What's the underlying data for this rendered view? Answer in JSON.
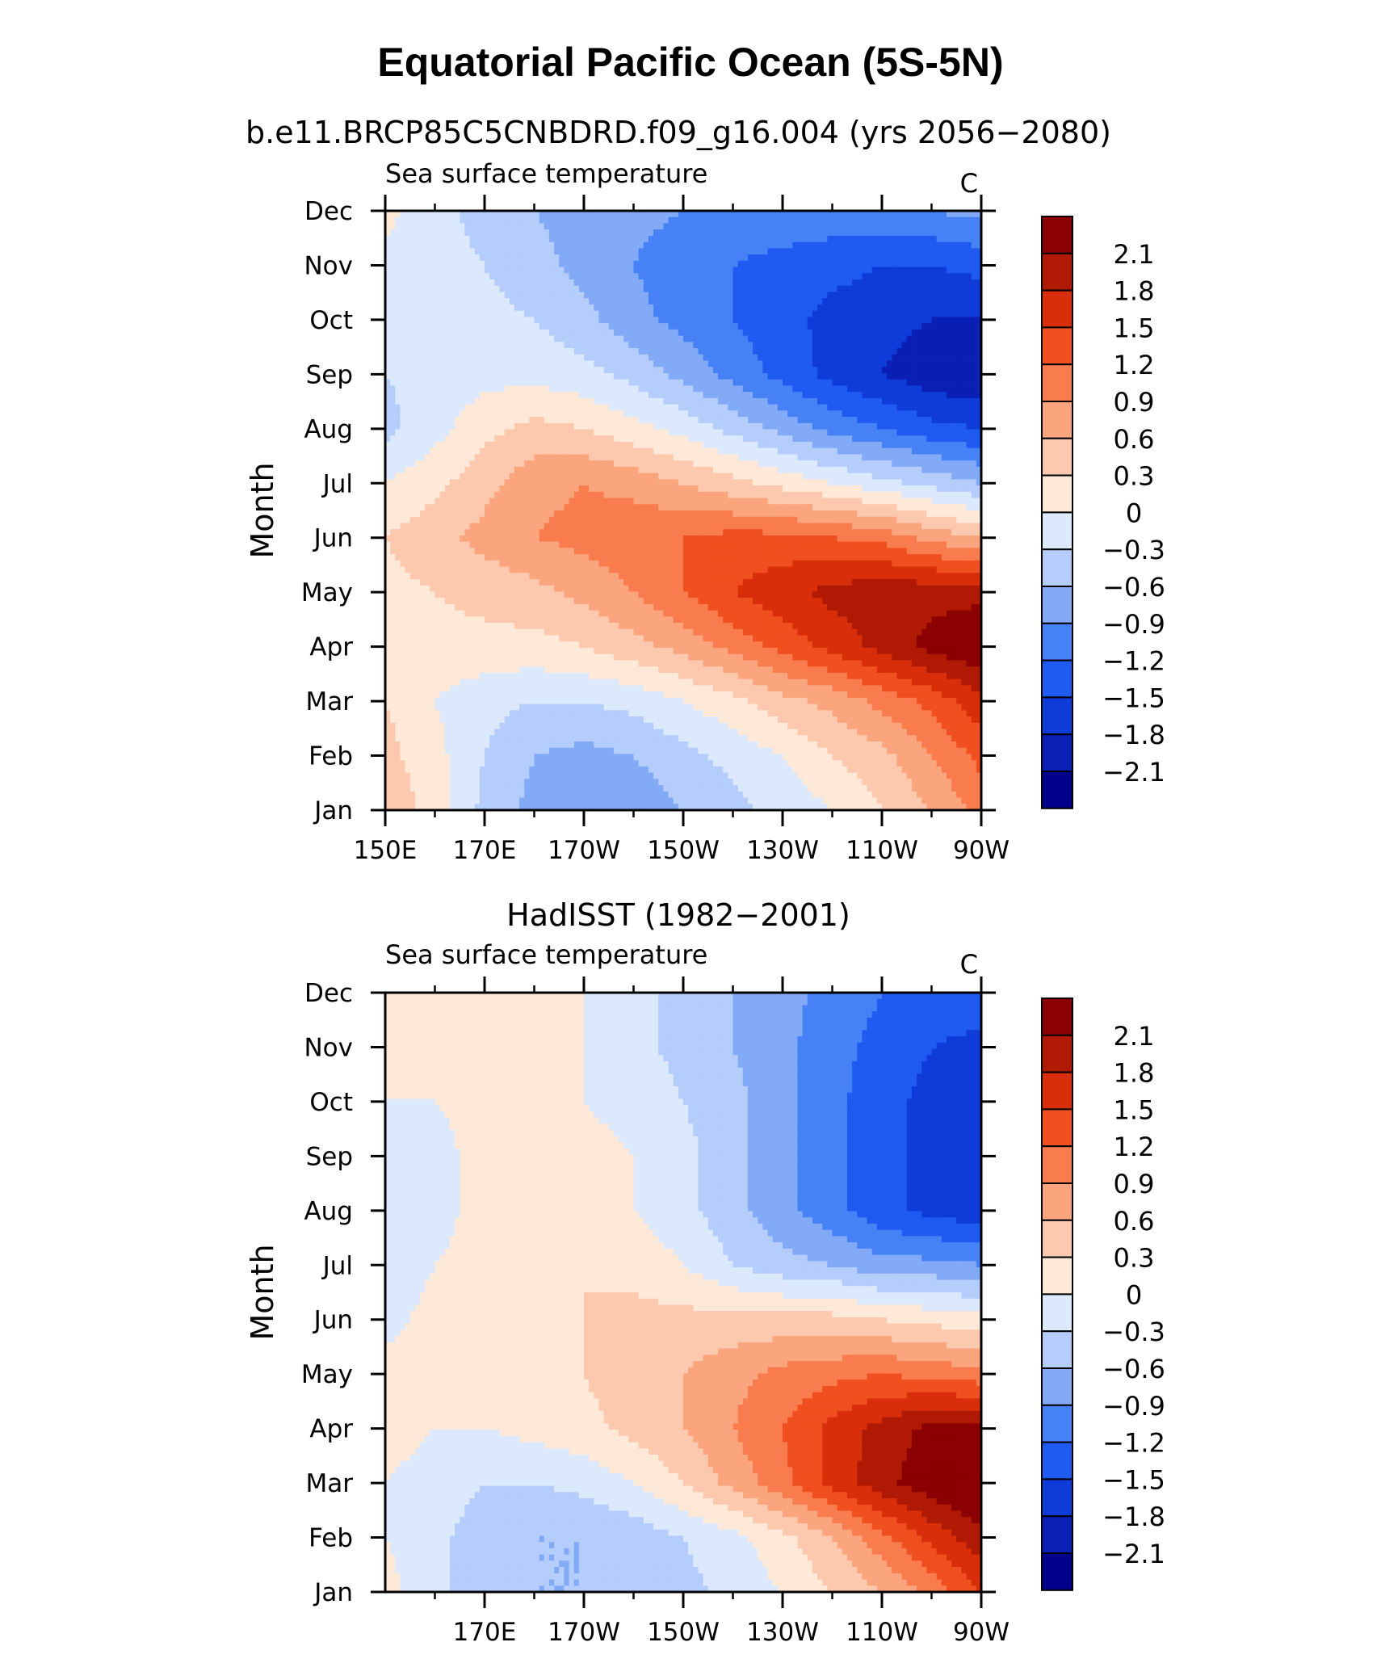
{
  "chart_data": {
    "type": "heatmap",
    "title": "Equatorial Pacific Ocean (5S-5N)",
    "plot_label": "Sea surface temperature",
    "units": "C",
    "ylabel": "Month",
    "months": [
      "Jan",
      "Feb",
      "Mar",
      "Apr",
      "May",
      "Jun",
      "Jul",
      "Aug",
      "Sep",
      "Oct",
      "Nov",
      "Dec"
    ],
    "contour_levels": [
      -2.1,
      -1.8,
      -1.5,
      -1.2,
      -0.9,
      -0.6,
      -0.3,
      0,
      0.3,
      0.6,
      0.9,
      1.2,
      1.5,
      1.8,
      2.1
    ],
    "colorbar_labels": [
      "2.1",
      "1.8",
      "1.5",
      "1.2",
      "0.9",
      "0.6",
      "0.3",
      "0",
      "−0.3",
      "−0.6",
      "−0.9",
      "−1.2",
      "−1.5",
      "−1.8",
      "−2.1"
    ],
    "colors": [
      "#00008b",
      "#0a1fb4",
      "#0f3cd8",
      "#1f5bf0",
      "#4682f5",
      "#82aaf7",
      "#b4cdfa",
      "#dce9fc",
      "#fee8d8",
      "#fcc9ae",
      "#fba57f",
      "#f97c4e",
      "#f04f1f",
      "#d82e0a",
      "#b01a05",
      "#8b0000"
    ],
    "panels": [
      {
        "subtitle": "b.e11.BRCP85C5CNBDRD.f09_g16.004 (yrs 2056−2080)",
        "lon_labels": [
          "150E",
          "170E",
          "170W",
          "150W",
          "130W",
          "110W",
          "90W"
        ],
        "lon_values": [
          150,
          170,
          190,
          210,
          230,
          250,
          270
        ],
        "lon_range": [
          150,
          270
        ],
        "grid_lon": [
          150,
          160,
          170,
          180,
          190,
          200,
          210,
          220,
          230,
          240,
          250,
          260,
          270
        ],
        "values": [
          [
            0.5,
            0.2,
            -0.4,
            -0.7,
            -0.9,
            -0.8,
            -0.6,
            -0.4,
            -0.2,
            0.0,
            0.3,
            0.6,
            1.0
          ],
          [
            0.4,
            0.1,
            -0.3,
            -0.6,
            -0.7,
            -0.6,
            -0.4,
            -0.2,
            0.0,
            0.3,
            0.5,
            0.9,
            1.3
          ],
          [
            0.3,
            0.0,
            -0.2,
            -0.3,
            -0.3,
            -0.2,
            0.0,
            0.2,
            0.5,
            0.7,
            1.0,
            1.3,
            1.7
          ],
          [
            0.2,
            0.2,
            0.2,
            0.2,
            0.3,
            0.5,
            0.7,
            1.0,
            1.3,
            1.6,
            1.9,
            2.2,
            2.4
          ],
          [
            0.2,
            0.3,
            0.4,
            0.5,
            0.7,
            0.9,
            1.2,
            1.5,
            1.7,
            1.9,
            2.0,
            2.0,
            2.0
          ],
          [
            0.3,
            0.5,
            0.7,
            0.9,
            1.0,
            1.1,
            1.2,
            1.3,
            1.3,
            1.2,
            1.1,
            0.8,
            0.6
          ],
          [
            0.0,
            0.2,
            0.5,
            0.8,
            0.9,
            0.8,
            0.6,
            0.4,
            0.2,
            0.0,
            -0.2,
            -0.4,
            -0.6
          ],
          [
            -0.4,
            -0.1,
            0.2,
            0.4,
            0.3,
            0.1,
            -0.1,
            -0.4,
            -0.7,
            -1.0,
            -1.2,
            -1.4,
            -1.5
          ],
          [
            -0.3,
            -0.2,
            -0.1,
            -0.1,
            -0.2,
            -0.4,
            -0.7,
            -1.0,
            -1.3,
            -1.6,
            -1.8,
            -2.0,
            -2.1
          ],
          [
            -0.2,
            -0.2,
            -0.2,
            -0.3,
            -0.5,
            -0.8,
            -1.0,
            -1.2,
            -1.4,
            -1.6,
            -1.7,
            -1.8,
            -1.8
          ],
          [
            -0.1,
            -0.2,
            -0.3,
            -0.5,
            -0.7,
            -0.9,
            -1.1,
            -1.2,
            -1.3,
            -1.4,
            -1.5,
            -1.5,
            -1.4
          ],
          [
            0.1,
            -0.2,
            -0.4,
            -0.6,
            -0.7,
            -0.8,
            -0.9,
            -1.0,
            -1.0,
            -1.0,
            -1.0,
            -0.9,
            -0.8
          ]
        ]
      },
      {
        "subtitle": "HadISST (1982−2001)",
        "lon_labels": [
          "170E",
          "170W",
          "150W",
          "130W",
          "110W",
          "90W"
        ],
        "lon_values": [
          170,
          190,
          210,
          230,
          250,
          270
        ],
        "lon_range": [
          150,
          270
        ],
        "grid_lon": [
          150,
          160,
          170,
          180,
          190,
          200,
          210,
          220,
          230,
          240,
          250,
          260,
          270
        ],
        "values": [
          [
            0.1,
            -0.2,
            -0.5,
            -0.6,
            -0.6,
            -0.5,
            -0.4,
            -0.2,
            0.0,
            0.3,
            0.6,
            1.0,
            1.5
          ],
          [
            0.0,
            -0.2,
            -0.5,
            -0.6,
            -0.6,
            -0.5,
            -0.3,
            -0.1,
            0.2,
            0.6,
            1.1,
            1.6,
            2.0
          ],
          [
            0.0,
            -0.1,
            -0.3,
            -0.3,
            -0.2,
            0.0,
            0.3,
            0.7,
            1.1,
            1.6,
            2.0,
            2.3,
            2.5
          ],
          [
            0.1,
            0.0,
            0.0,
            0.1,
            0.2,
            0.4,
            0.6,
            0.9,
            1.2,
            1.6,
            1.9,
            2.2,
            2.2
          ],
          [
            0.1,
            0.1,
            0.2,
            0.2,
            0.3,
            0.5,
            0.6,
            0.8,
            1.0,
            1.1,
            1.2,
            1.1,
            1.0
          ],
          [
            -0.1,
            0.1,
            0.2,
            0.2,
            0.3,
            0.4,
            0.4,
            0.4,
            0.4,
            0.4,
            0.3,
            0.2,
            0.1
          ],
          [
            -0.2,
            0.0,
            0.1,
            0.2,
            0.3,
            0.2,
            0.0,
            -0.3,
            -0.5,
            -0.6,
            -0.8,
            -0.8,
            -0.9
          ],
          [
            -0.3,
            -0.1,
            0.1,
            0.2,
            0.1,
            0.0,
            -0.2,
            -0.5,
            -0.8,
            -1.1,
            -1.4,
            -1.6,
            -1.7
          ],
          [
            -0.2,
            -0.1,
            0.1,
            0.3,
            0.1,
            0.0,
            -0.2,
            -0.5,
            -0.8,
            -1.1,
            -1.4,
            -1.6,
            -1.8
          ],
          [
            0.0,
            0.0,
            0.1,
            0.1,
            0.0,
            -0.1,
            -0.3,
            -0.5,
            -0.8,
            -1.1,
            -1.4,
            -1.6,
            -1.7
          ],
          [
            0.1,
            0.1,
            0.1,
            0.1,
            0.0,
            -0.2,
            -0.4,
            -0.6,
            -0.8,
            -1.1,
            -1.3,
            -1.5,
            -1.6
          ],
          [
            0.1,
            0.1,
            0.1,
            0.1,
            0.0,
            -0.2,
            -0.4,
            -0.6,
            -0.8,
            -1.0,
            -1.2,
            -1.3,
            -1.3
          ]
        ]
      }
    ]
  }
}
